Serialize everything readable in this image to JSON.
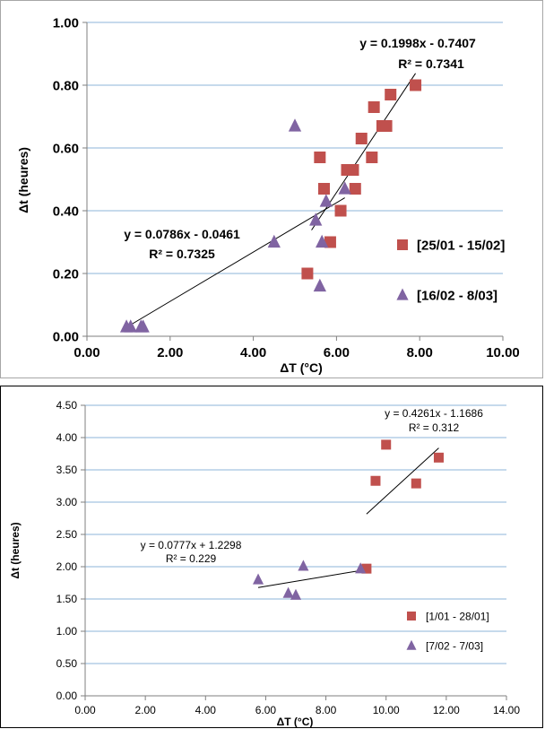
{
  "chart_data": [
    {
      "type": "scatter",
      "xlabel": "ΔT (°C)",
      "ylabel": "Δt (heures)",
      "xlim": [
        0,
        10
      ],
      "ylim": [
        0,
        1
      ],
      "x_ticks": [
        "0.00",
        "2.00",
        "4.00",
        "6.00",
        "8.00",
        "10.00"
      ],
      "y_ticks": [
        "0.00",
        "0.20",
        "0.40",
        "0.60",
        "0.80",
        "1.00"
      ],
      "grid": "horizontal",
      "legend_position": "right",
      "series": [
        {
          "name": "[25/01 - 15/02]",
          "marker": "square",
          "color": "#c0504d",
          "points": [
            [
              5.3,
              0.2
            ],
            [
              5.6,
              0.57
            ],
            [
              5.7,
              0.47
            ],
            [
              5.85,
              0.3
            ],
            [
              6.1,
              0.4
            ],
            [
              6.25,
              0.53
            ],
            [
              6.4,
              0.53
            ],
            [
              6.45,
              0.47
            ],
            [
              6.6,
              0.63
            ],
            [
              6.85,
              0.57
            ],
            [
              6.9,
              0.73
            ],
            [
              7.1,
              0.67
            ],
            [
              7.2,
              0.67
            ],
            [
              7.3,
              0.77
            ],
            [
              7.9,
              0.8
            ]
          ],
          "trendline": {
            "equation": "y = 0.1998x - 0.7407",
            "r2": "R² = 0.7341",
            "slope": 0.1998,
            "intercept": -0.7407,
            "x_range": [
              5.4,
              7.9
            ]
          }
        },
        {
          "name": "[16/02 - 8/03]",
          "marker": "triangle",
          "color": "#8064a2",
          "points": [
            [
              0.95,
              0.03
            ],
            [
              1.05,
              0.03
            ],
            [
              1.3,
              0.03
            ],
            [
              1.35,
              0.03
            ],
            [
              4.5,
              0.3
            ],
            [
              5.0,
              0.67
            ],
            [
              5.5,
              0.37
            ],
            [
              5.6,
              0.16
            ],
            [
              5.65,
              0.3
            ],
            [
              5.75,
              0.43
            ],
            [
              6.2,
              0.47
            ]
          ],
          "trendline": {
            "equation": "y = 0.0786x - 0.0461",
            "r2": "R² = 0.7325",
            "slope": 0.0786,
            "intercept": -0.0461,
            "x_range": [
              0.95,
              6.2
            ]
          }
        }
      ]
    },
    {
      "type": "scatter",
      "xlabel": "ΔT (°C)",
      "ylabel": "Δt (heures)",
      "xlim": [
        0,
        14
      ],
      "ylim": [
        0,
        4.5
      ],
      "x_ticks": [
        "0.00",
        "2.00",
        "4.00",
        "6.00",
        "8.00",
        "10.00",
        "12.00",
        "14.00"
      ],
      "y_ticks": [
        "0.00",
        "0.50",
        "1.00",
        "1.50",
        "2.00",
        "2.50",
        "3.00",
        "3.50",
        "4.00",
        "4.50"
      ],
      "grid": "horizontal",
      "legend_position": "right",
      "series": [
        {
          "name": "[1/01 - 28/01]",
          "marker": "square",
          "color": "#c0504d",
          "points": [
            [
              9.35,
              1.97
            ],
            [
              9.65,
              3.33
            ],
            [
              10.0,
              3.89
            ],
            [
              11.0,
              3.29
            ],
            [
              11.75,
              3.69
            ]
          ],
          "trendline": {
            "equation": "y = 0.4261x - 1.1686",
            "r2": "R² = 0.312",
            "slope": 0.4261,
            "intercept": -1.1686,
            "x_range": [
              9.35,
              11.75
            ]
          }
        },
        {
          "name": "[7/02 - 7/03]",
          "marker": "triangle",
          "color": "#8064a2",
          "points": [
            [
              5.75,
              1.8
            ],
            [
              6.75,
              1.59
            ],
            [
              7.0,
              1.56
            ],
            [
              7.25,
              2.01
            ],
            [
              9.15,
              1.97
            ]
          ],
          "trendline": {
            "equation": "y = 0.0777x + 1.2298",
            "r2": "R² = 0.229",
            "slope": 0.0777,
            "intercept": 1.2298,
            "x_range": [
              5.75,
              9.25
            ]
          }
        }
      ]
    }
  ]
}
